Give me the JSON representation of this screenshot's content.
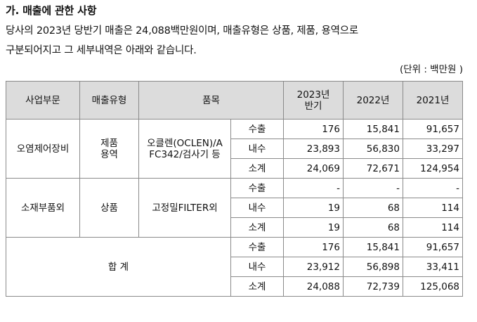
{
  "heading": "가. 매출에 관한 사항",
  "intro": {
    "line1": "당사의 2023년 당반기 매출은 24,088백만원이며, 매출유형은 상품, 제품, 용역으로",
    "line2": "구분되어지고 그 세부내역은 아래와 같습니다."
  },
  "unit_note": "(단위 : 백만원 )",
  "table": {
    "headers": {
      "segment": "사업부문",
      "type": "매출유형",
      "item": "품목",
      "y2023_line1": "2023년",
      "y2023_line2": "반기",
      "y2022": "2022년",
      "y2021": "2021년"
    },
    "groups": [
      {
        "segment": "오염제어장비",
        "type_line1": "제품",
        "type_line2": "용역",
        "item_line1": "오클렌(OCLEN)/A",
        "item_line2": "FC342/검사기 등",
        "rows": [
          {
            "label": "수출",
            "y2023": "176",
            "y2022": "15,841",
            "y2021": "91,657"
          },
          {
            "label": "내수",
            "y2023": "23,893",
            "y2022": "56,830",
            "y2021": "33,297"
          },
          {
            "label": "소계",
            "y2023": "24,069",
            "y2022": "72,671",
            "y2021": "124,954"
          }
        ]
      },
      {
        "segment": "소재부품외",
        "type_line1": "상품",
        "type_line2": "",
        "item_line1": "고정밀FILTER외",
        "item_line2": "",
        "rows": [
          {
            "label": "수출",
            "y2023": "-",
            "y2022": "-",
            "y2021": "-"
          },
          {
            "label": "내수",
            "y2023": "19",
            "y2022": "68",
            "y2021": "114"
          },
          {
            "label": "소계",
            "y2023": "19",
            "y2022": "68",
            "y2021": "114"
          }
        ]
      }
    ],
    "total": {
      "label": "합 계",
      "rows": [
        {
          "label": "수출",
          "y2023": "176",
          "y2022": "15,841",
          "y2021": "91,657"
        },
        {
          "label": "내수",
          "y2023": "23,912",
          "y2022": "56,898",
          "y2021": "33,411"
        },
        {
          "label": "소계",
          "y2023": "24,088",
          "y2022": "72,739",
          "y2021": "125,068"
        }
      ]
    }
  }
}
